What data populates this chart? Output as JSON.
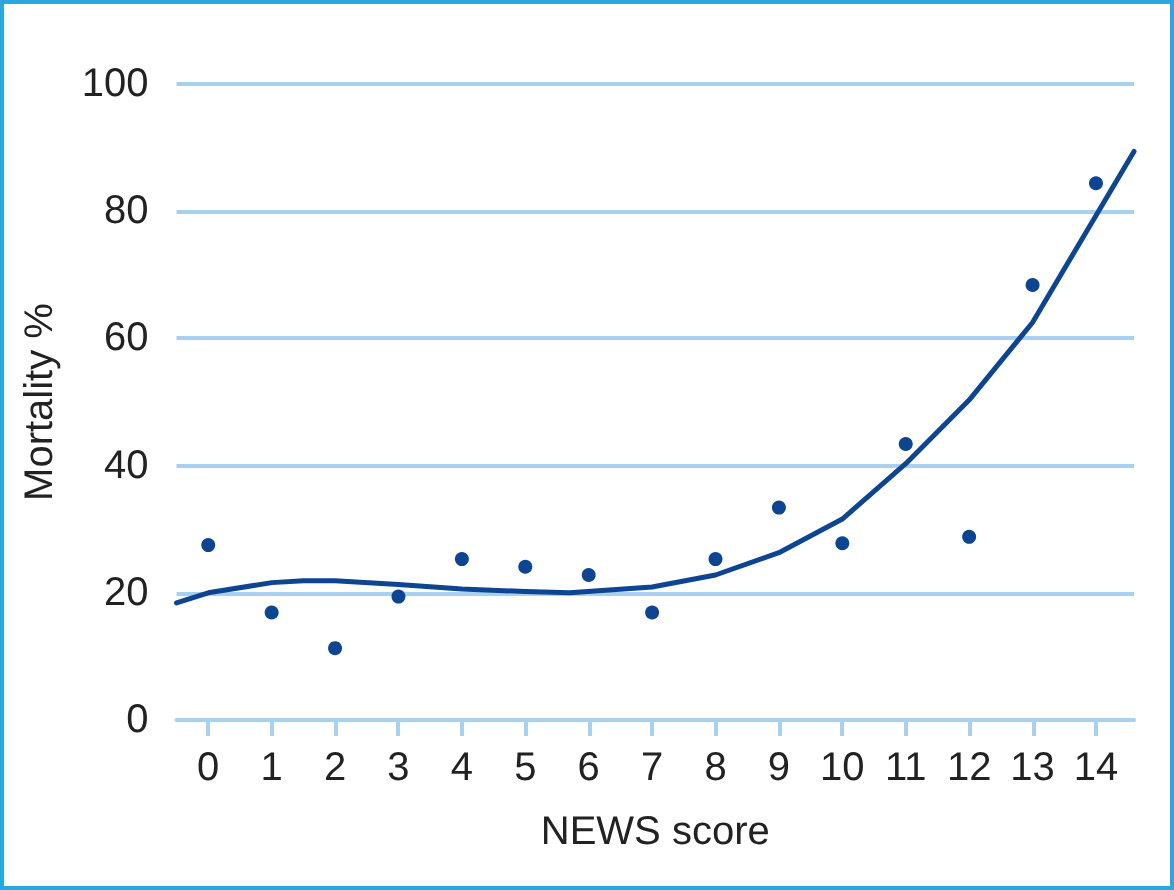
{
  "chart_data": {
    "type": "scatter",
    "xlabel": "NEWS score",
    "ylabel": "Mortality %",
    "xlim": [
      -0.5,
      14.6
    ],
    "xticks": [
      0,
      1,
      2,
      3,
      4,
      5,
      6,
      7,
      8,
      9,
      10,
      11,
      12,
      13,
      14
    ],
    "ylim": [
      0,
      100
    ],
    "yticks": [
      0,
      20,
      40,
      60,
      80,
      100
    ],
    "grid": "y",
    "marker": "circle",
    "series": [
      {
        "color": "#0d4592",
        "x": [
          0,
          1,
          2,
          3,
          4,
          5,
          6,
          7,
          8,
          9,
          10,
          11,
          12,
          13,
          14
        ],
        "values": [
          27.5,
          16.9,
          11.3,
          19.4,
          25.3,
          24.1,
          22.8,
          16.9,
          25.3,
          33.4,
          27.8,
          43.4,
          28.8,
          68.4,
          84.4
        ]
      },
      {
        "type": "line",
        "color": "#0d4592",
        "marker": "none",
        "line_style": "solid",
        "x": [
          -0.5,
          0,
          1,
          1.5,
          2,
          3,
          4,
          5,
          5.7,
          7,
          8,
          9,
          10,
          11,
          12,
          13,
          14.6
        ],
        "values": [
          18.4,
          20,
          21.6,
          21.9,
          21.9,
          21.3,
          20.6,
          20.2,
          20,
          20.9,
          22.8,
          26.3,
          31.6,
          40.3,
          50.3,
          62.5,
          89.4
        ]
      }
    ]
  }
}
